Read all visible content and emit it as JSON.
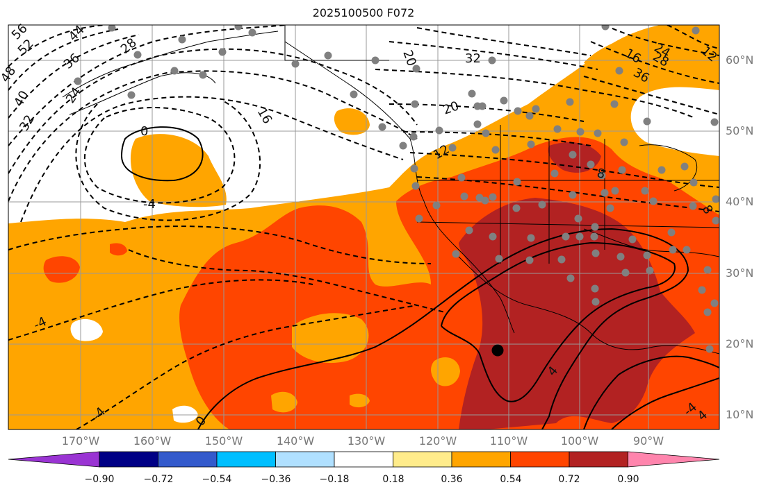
{
  "title": "2025100500 F072",
  "longitude_labels": [
    "170°W",
    "160°W",
    "150°W",
    "140°W",
    "130°W",
    "120°W",
    "110°W",
    "100°W",
    "90°W"
  ],
  "latitude_labels": [
    "60°N",
    "50°N",
    "40°N",
    "30°N",
    "20°N",
    "10°N"
  ],
  "contour_labels": [
    "56",
    "52",
    "48",
    "44",
    "40",
    "36",
    "32",
    "28",
    "24",
    "20",
    "16",
    "12",
    "8",
    "4",
    "0",
    "36",
    "32",
    "28",
    "24",
    "20",
    "16",
    "12",
    "8",
    "4",
    "0",
    "-4",
    "-4",
    "-4",
    "-4"
  ],
  "colorbar": {
    "ticks": [
      "−0.90",
      "−0.72",
      "−0.54",
      "−0.36",
      "−0.18",
      "0.18",
      "0.36",
      "0.54",
      "0.72",
      "0.90"
    ],
    "colors": [
      "#9a34d3",
      "#000085",
      "#335acc",
      "#00bfff",
      "#b0e0ff",
      "#ffffff",
      "#ffec8b",
      "#ffa500",
      "#ff4500",
      "#b22222",
      "#ff85ad"
    ]
  },
  "fill_colors": {
    "orange": "#ffa500",
    "red": "#ff4500",
    "darkred": "#b22222"
  },
  "marker_color": "#808080"
}
